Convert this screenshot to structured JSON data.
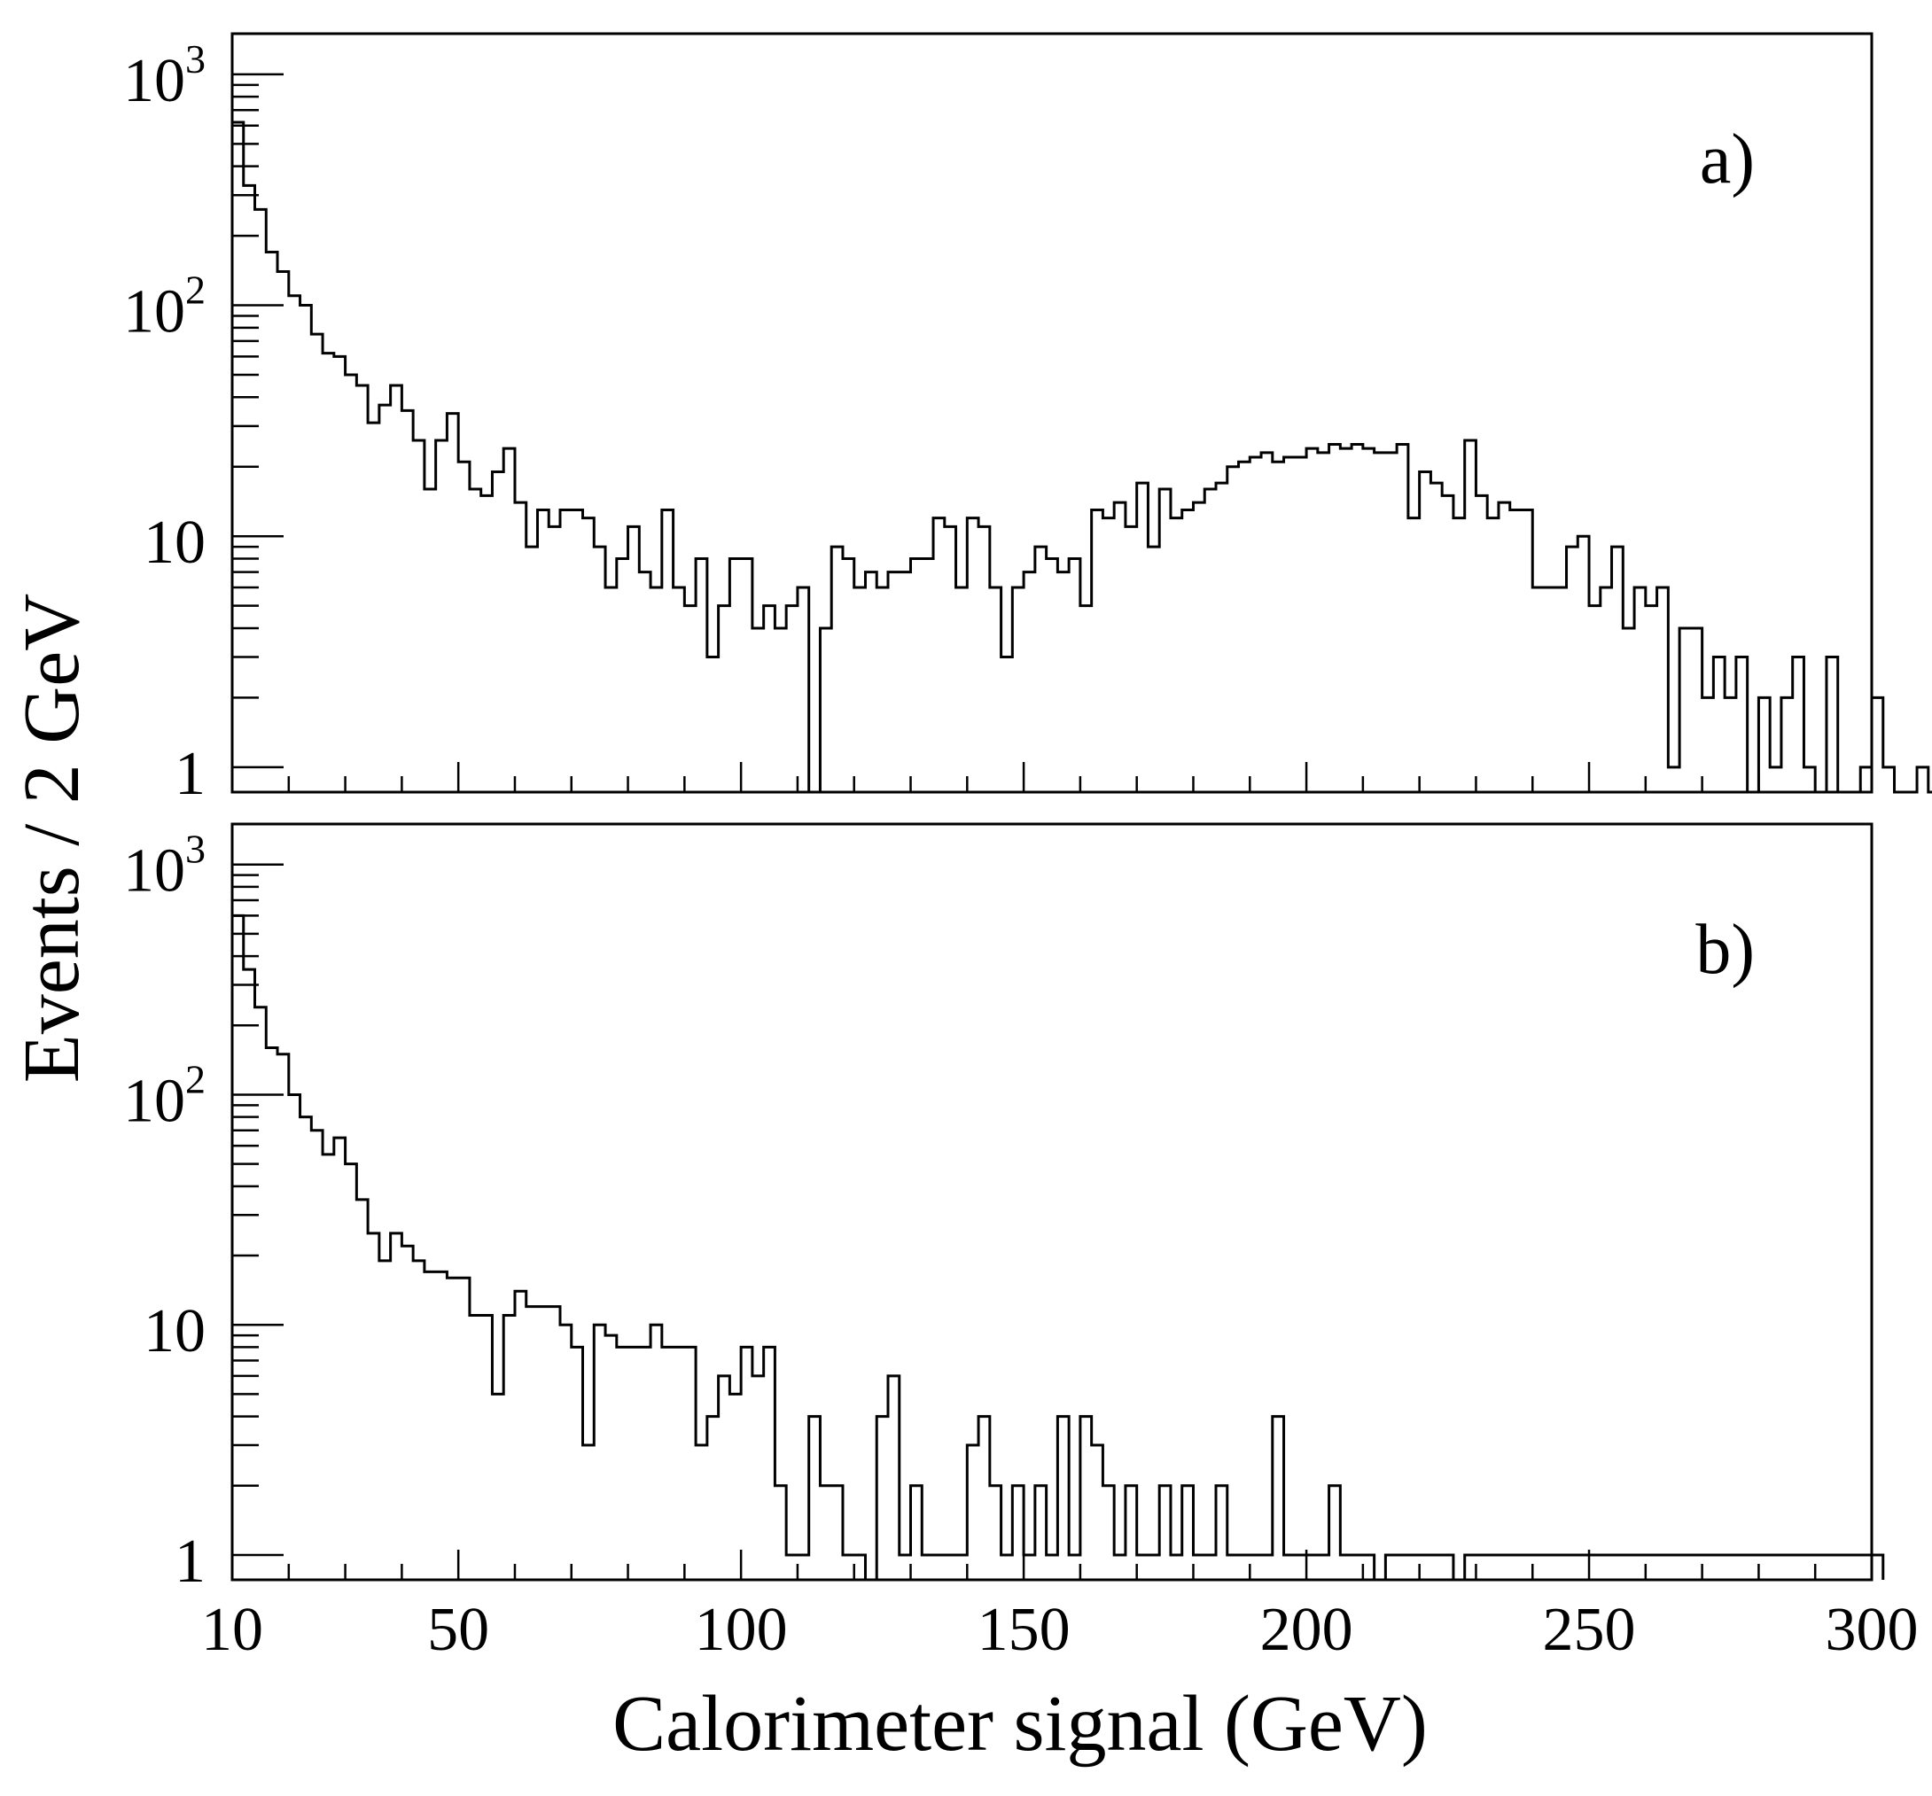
{
  "chart_data": {
    "type": "histogram",
    "shared_xlabel": "Calorimeter signal (GeV)",
    "shared_ylabel": "Events / 2 GeV",
    "xlim": [
      10,
      300
    ],
    "bin_width": 2,
    "x_ticks": [
      "10",
      "50",
      "100",
      "150",
      "200",
      "250",
      "300"
    ],
    "y_scale": "log",
    "y_ticks": [
      "1",
      "10",
      "10^2",
      "10^3"
    ],
    "grid": false,
    "panels": [
      {
        "label": "a)",
        "ylim": [
          0.78,
          1500
        ],
        "series": [
          {
            "x_start": 10,
            "values": [
              620,
              330,
              260,
              170,
              140,
              110,
              100,
              75,
              62,
              60,
              50,
              45,
              31,
              37,
              45,
              35,
              26,
              16,
              26,
              34,
              21,
              16,
              15,
              19,
              24,
              14,
              9,
              13,
              11,
              13,
              13,
              12,
              9,
              6,
              8,
              11,
              7,
              6,
              13,
              6,
              5,
              8,
              3,
              5,
              8,
              8,
              4,
              5,
              4,
              5,
              6,
              0,
              4,
              9,
              8,
              6,
              7,
              6,
              7,
              7,
              8,
              8,
              12,
              11,
              6,
              12,
              11,
              6,
              3,
              6,
              7,
              9,
              8,
              7,
              8,
              5,
              13,
              12,
              14,
              11,
              17,
              9,
              16,
              12,
              13,
              14,
              16,
              17,
              20,
              21,
              22,
              23,
              21,
              22,
              22,
              24,
              23,
              25,
              24,
              25,
              24,
              23,
              23,
              25,
              12,
              19,
              17,
              15,
              12,
              26,
              15,
              12,
              14,
              13,
              13,
              6,
              6,
              6,
              9,
              10,
              5,
              6,
              9,
              4,
              6,
              5,
              6,
              1,
              4,
              4,
              2,
              3,
              2,
              3,
              0,
              2,
              1,
              2,
              3,
              1,
              0,
              3,
              0,
              0,
              1,
              2,
              1,
              0,
              0,
              1,
              0,
              1,
              1,
              0,
              0,
              1,
              0,
              1,
              0,
              2,
              1,
              2,
              0,
              0,
              0,
              0,
              1,
              0
            ]
          }
        ]
      },
      {
        "label": "b)",
        "ylim": [
          0.78,
          1500
        ],
        "series": [
          {
            "x_start": 10,
            "values": [
              600,
              350,
              240,
              160,
              150,
              100,
              80,
              70,
              55,
              65,
              50,
              35,
              25,
              19,
              25,
              22,
              19,
              17,
              17,
              16,
              16,
              11,
              11,
              5,
              11,
              14,
              12,
              12,
              12,
              10,
              8,
              3,
              10,
              9,
              8,
              8,
              8,
              10,
              8,
              8,
              8,
              3,
              4,
              6,
              5,
              8,
              6,
              8,
              2,
              1,
              1,
              4,
              2,
              2,
              1,
              1,
              0,
              4,
              6,
              1,
              2,
              1,
              1,
              1,
              1,
              3,
              4,
              2,
              1,
              2,
              1,
              2,
              1,
              4,
              1,
              4,
              3,
              2,
              1,
              2,
              1,
              1,
              2,
              1,
              2,
              1,
              1,
              2,
              1,
              1,
              1,
              1,
              4,
              1,
              1,
              1,
              1,
              2,
              1,
              1,
              1,
              0,
              1,
              1,
              1,
              1,
              1,
              1,
              0,
              1,
              1,
              1,
              1,
              1,
              1,
              1,
              1,
              1,
              1,
              1,
              1,
              1,
              1,
              1,
              1,
              1,
              1,
              1,
              1,
              1,
              1,
              1,
              1,
              1,
              1,
              1,
              1,
              1,
              1,
              1,
              1,
              1,
              1,
              1,
              1,
              1
            ]
          }
        ]
      }
    ]
  }
}
